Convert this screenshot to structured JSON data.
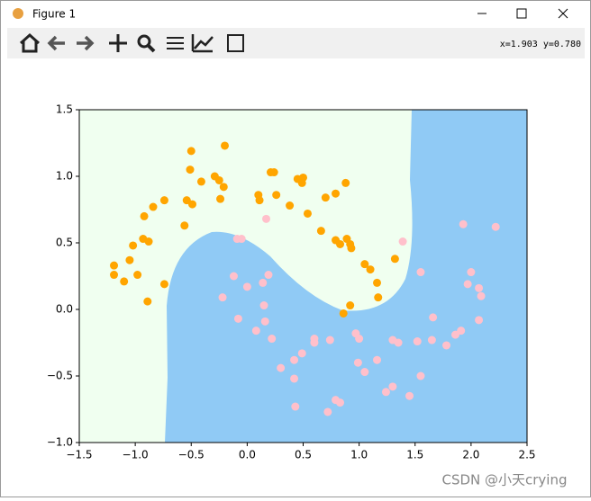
{
  "window": {
    "title": "Figure 1",
    "status": "x=1.903 y=0.780",
    "watermark": "CSDN @小天crying"
  },
  "chart_data": {
    "type": "scatter",
    "series": [
      {
        "color": "#ffa500",
        "x": [
          -1.19,
          -1.19,
          -1.05,
          -1.02,
          -1.1,
          -0.98,
          -0.92,
          -0.93,
          -0.88,
          -0.84,
          -0.74,
          -0.74,
          -0.89,
          -0.56,
          -0.54,
          -0.5,
          -0.51,
          -0.49,
          -0.41,
          -0.29,
          -0.25,
          -0.21,
          -0.24,
          -0.2,
          0.1,
          0.11,
          0.21,
          0.24,
          0.26,
          0.38,
          0.45,
          0.5,
          0.49,
          0.54,
          0.66,
          0.7,
          0.79,
          0.88,
          0.79,
          0.83,
          0.89,
          0.92,
          0.93,
          1.05,
          1.1,
          1.16,
          1.17,
          0.86,
          0.92,
          1.32
        ],
        "y": [
          0.33,
          0.26,
          0.37,
          0.48,
          0.21,
          0.26,
          0.7,
          0.53,
          0.51,
          0.77,
          0.82,
          0.19,
          0.06,
          0.63,
          0.82,
          1.19,
          1.05,
          0.79,
          0.96,
          1.0,
          0.97,
          0.92,
          0.83,
          1.23,
          0.86,
          0.82,
          1.03,
          1.03,
          0.86,
          0.78,
          0.98,
          0.99,
          0.95,
          0.72,
          0.59,
          0.84,
          0.87,
          0.95,
          0.52,
          0.49,
          0.53,
          0.49,
          0.46,
          0.34,
          0.3,
          0.2,
          0.09,
          -0.03,
          0.03,
          0.38
        ]
      },
      {
        "color": "#ffc0cb",
        "x": [
          0.17,
          -0.09,
          -0.05,
          -0.12,
          -0.22,
          0.0,
          0.14,
          0.19,
          -0.08,
          0.15,
          0.16,
          0.08,
          0.22,
          0.3,
          0.6,
          0.6,
          0.49,
          0.42,
          0.42,
          0.43,
          0.74,
          0.79,
          0.83,
          0.72,
          0.97,
          1.0,
          0.99,
          1.05,
          1.16,
          1.24,
          1.3,
          1.3,
          1.35,
          1.45,
          1.39,
          1.55,
          1.52,
          1.55,
          1.66,
          1.65,
          1.78,
          1.86,
          1.91,
          1.93,
          1.97,
          2.0,
          2.07,
          2.09,
          2.07,
          2.22
        ],
        "y": [
          0.68,
          0.53,
          0.53,
          0.25,
          0.09,
          0.17,
          0.2,
          0.26,
          -0.07,
          0.03,
          -0.09,
          -0.16,
          -0.22,
          -0.44,
          -0.22,
          -0.25,
          -0.33,
          -0.38,
          -0.52,
          -0.73,
          -0.23,
          -0.68,
          -0.7,
          -0.77,
          -0.18,
          -0.22,
          -0.4,
          -0.47,
          -0.38,
          -0.62,
          -0.58,
          -0.23,
          -0.25,
          -0.65,
          0.51,
          0.28,
          -0.24,
          -0.5,
          -0.06,
          -0.23,
          -0.27,
          -0.19,
          -0.16,
          0.64,
          0.19,
          0.28,
          0.16,
          0.1,
          -0.08,
          0.62
        ]
      }
    ],
    "xlim": [
      -1.5,
      2.5
    ],
    "ylim": [
      -1.0,
      1.5
    ],
    "xticks": [
      {
        "value": -1.5,
        "label": "−1.5"
      },
      {
        "value": -1.0,
        "label": "−1.0"
      },
      {
        "value": -0.5,
        "label": "−0.5"
      },
      {
        "value": 0.0,
        "label": "0.0"
      },
      {
        "value": 0.5,
        "label": "0.5"
      },
      {
        "value": 1.0,
        "label": "1.0"
      },
      {
        "value": 1.5,
        "label": "1.5"
      },
      {
        "value": 2.0,
        "label": "2.0"
      },
      {
        "value": 2.5,
        "label": "2.5"
      }
    ],
    "yticks": [
      {
        "value": -1.0,
        "label": "−1.0"
      },
      {
        "value": -0.5,
        "label": "−0.5"
      },
      {
        "value": 0.0,
        "label": "0.0"
      },
      {
        "value": 0.5,
        "label": "0.5"
      },
      {
        "value": 1.0,
        "label": "1.0"
      },
      {
        "value": 1.5,
        "label": "1.5"
      }
    ]
  }
}
